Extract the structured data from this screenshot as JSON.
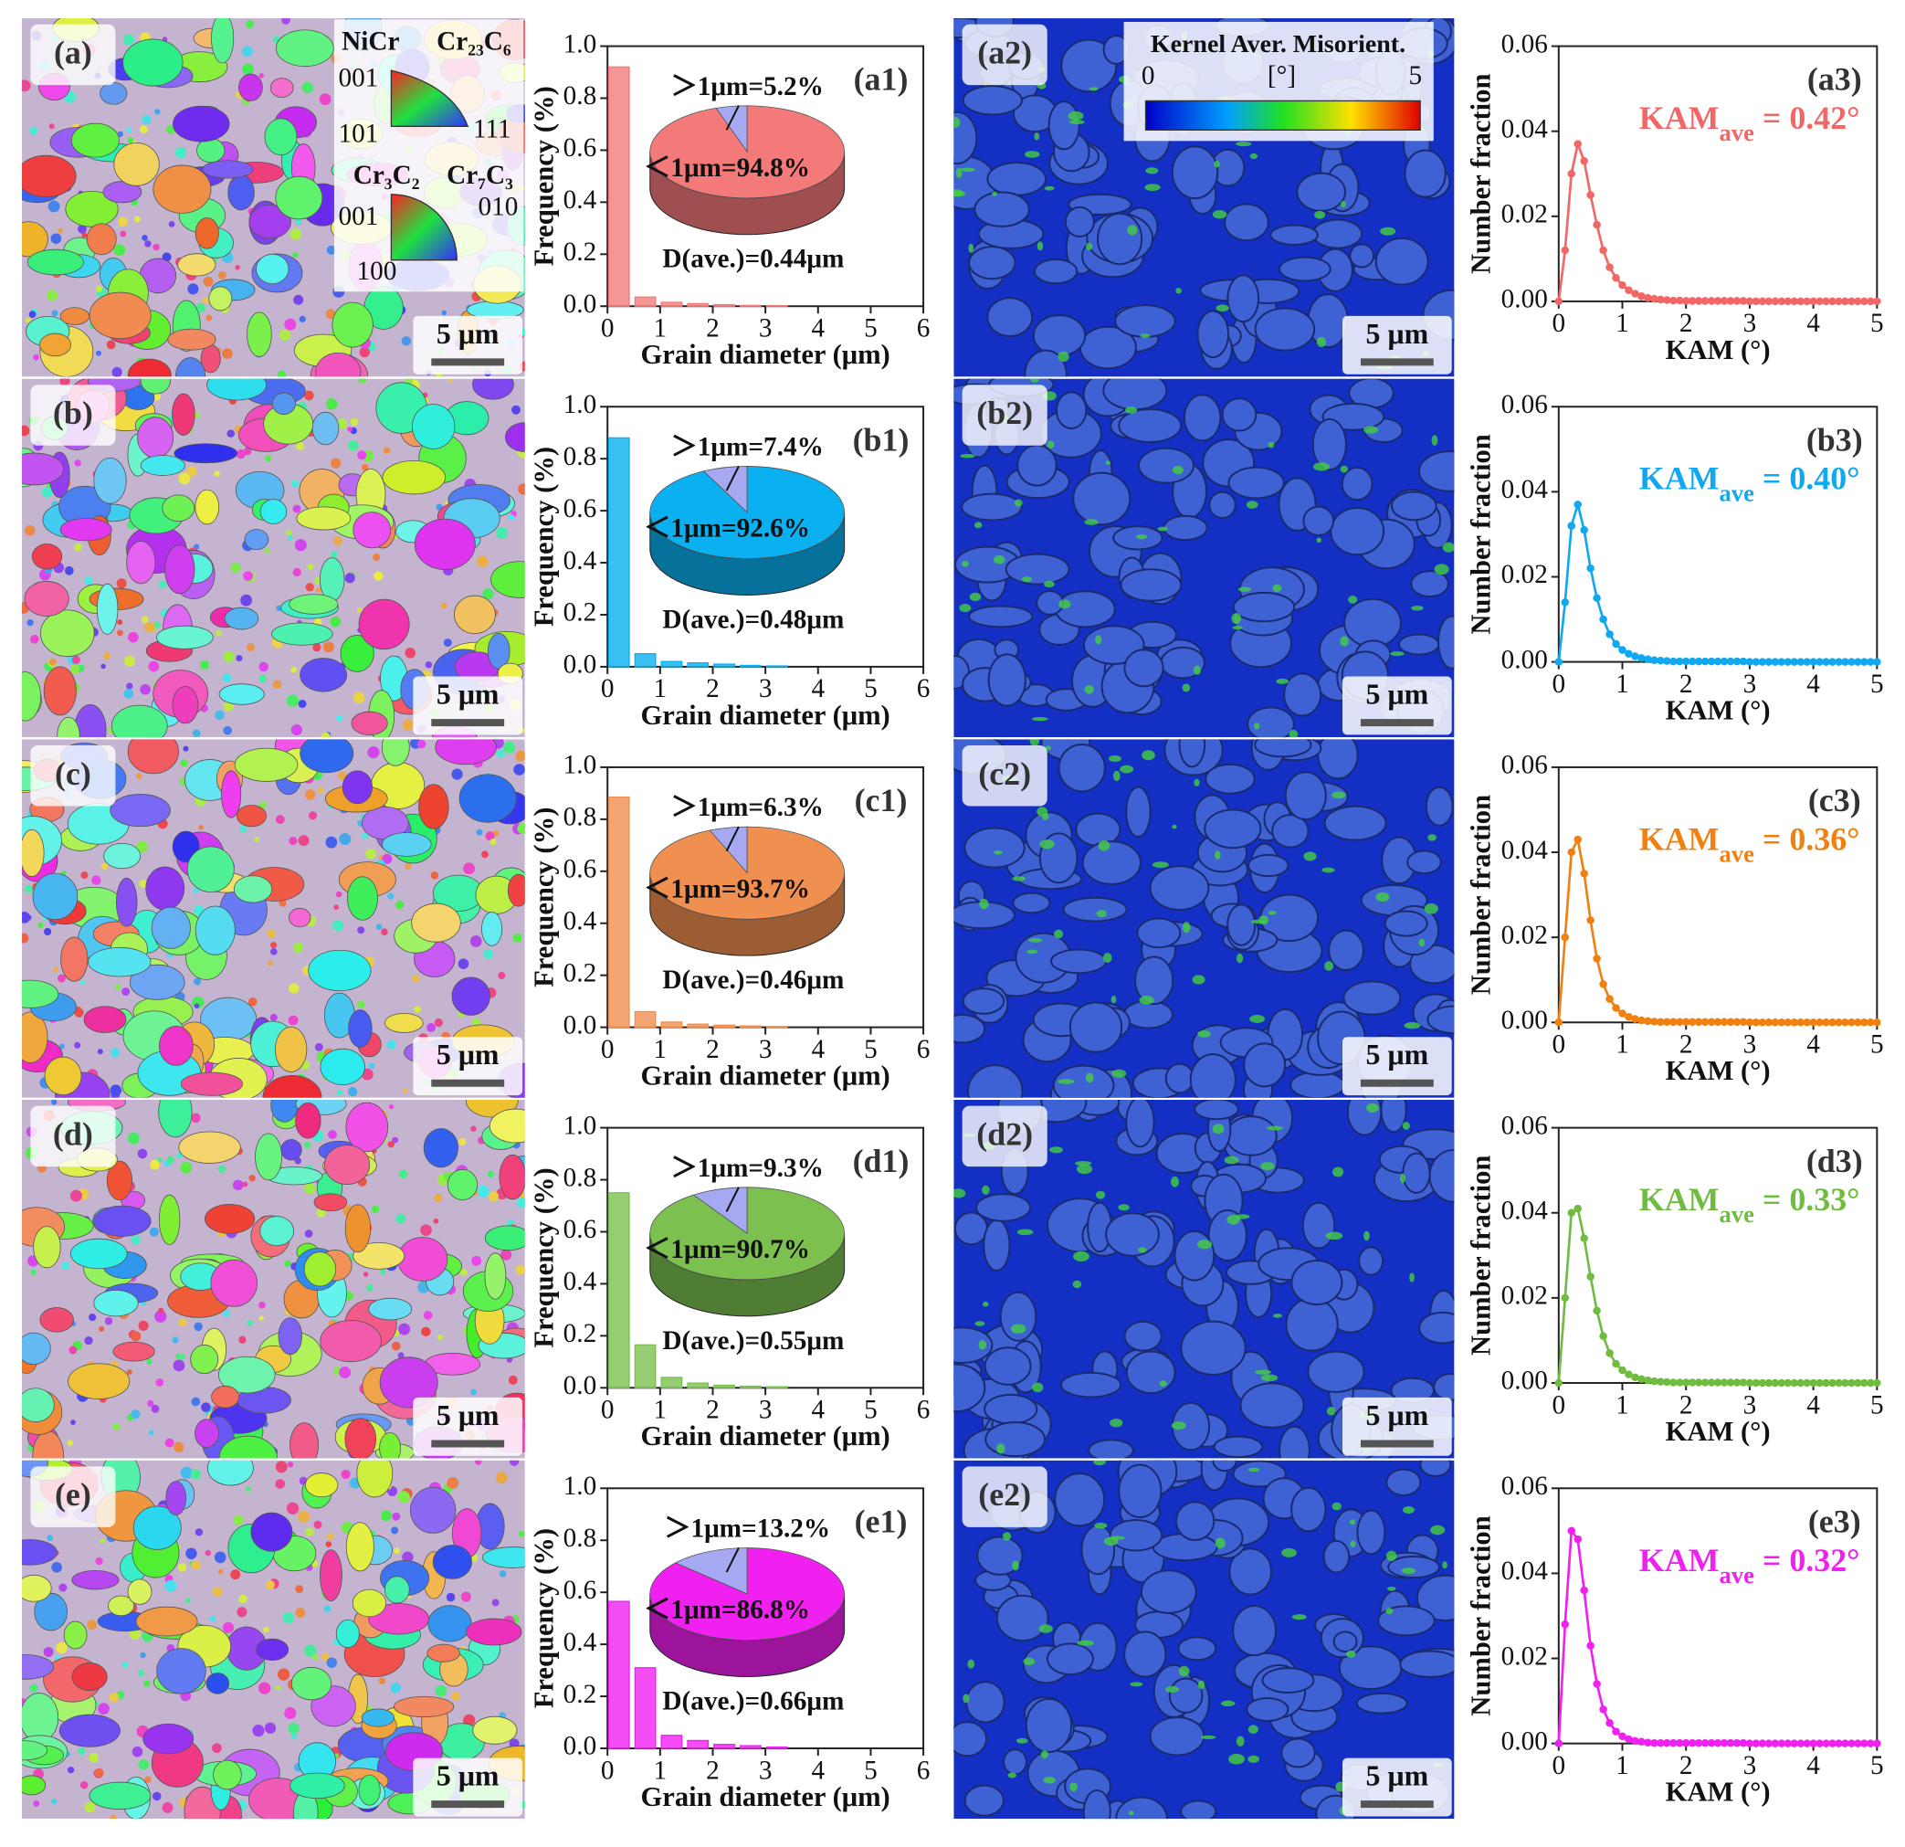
{
  "ipf_legend": {
    "phase_a": "NiCr",
    "phase_b": "Cr₂₃C₆",
    "corners_a": [
      "001",
      "101",
      "111"
    ],
    "phase_c": "Cr₃C₂",
    "phase_d": "Cr₇C₃",
    "corners_b": [
      "001",
      "010",
      "100"
    ]
  },
  "kam_legend": {
    "title": "Kernel Aver. Misorient.",
    "min": "0",
    "unit": "[°]",
    "max": "5"
  },
  "micrographs": [
    {
      "label": "(a)",
      "scale": "5 μm"
    },
    {
      "label": "(b)",
      "scale": "5 μm"
    },
    {
      "label": "(c)",
      "scale": "5 μm"
    },
    {
      "label": "(d)",
      "scale": "5 μm"
    },
    {
      "label": "(e)",
      "scale": "5 μm"
    }
  ],
  "kam_maps": [
    {
      "label": "(a2)",
      "scale": "5 μm"
    },
    {
      "label": "(b2)",
      "scale": "5 μm"
    },
    {
      "label": "(c2)",
      "scale": "5 μm"
    },
    {
      "label": "(d2)",
      "scale": "5 μm"
    },
    {
      "label": "(e2)",
      "scale": "5 μm"
    }
  ],
  "chart_data": [
    {
      "type": "histogram",
      "label": "(a1)",
      "xlabel": "Grain diameter (μm)",
      "ylabel": "Frequency (%)",
      "color": "#f47a7a",
      "bins": [
        0,
        0.5,
        1,
        1.5,
        2,
        2.5,
        3,
        3.5
      ],
      "values": [
        0.92,
        0.035,
        0.015,
        0.01,
        0.006,
        0.003,
        0.002
      ],
      "xlim": [
        0,
        6
      ],
      "ylim": [
        0,
        1
      ],
      "xticks": [
        0,
        1,
        2,
        3,
        4,
        5,
        6
      ],
      "yticks": [
        {
          "value": 0,
          "label": "0.0"
        },
        0.2,
        0.4,
        0.6,
        0.8,
        {
          "value": 1,
          "label": "1.0"
        }
      ],
      "annotation": "D(ave.)=0.44μm",
      "inset": {
        "type": "pie",
        "labels": [
          "＞1μm=5.2%",
          "＜1μm=94.8%"
        ],
        "values": [
          5.2,
          94.8
        ],
        "colors": [
          "#a6a9f2",
          "#f47a7a"
        ]
      }
    },
    {
      "type": "line",
      "label": "(a3)",
      "xlabel": "KAM (°)",
      "ylabel": "Number fraction",
      "color": "#f26666",
      "annotation": {
        "main": "KAM",
        "sub": "ave",
        "rest": " = 0.42°"
      },
      "xlim": [
        0,
        5
      ],
      "ylim": [
        0,
        0.06
      ],
      "xticks": [
        0,
        1,
        2,
        3,
        4,
        5
      ],
      "yticks": [
        {
          "value": 0,
          "label": "0.00"
        },
        {
          "value": 0.02,
          "label": "0.02"
        },
        {
          "value": 0.04,
          "label": "0.04"
        },
        {
          "value": 0.06,
          "label": "0.06"
        }
      ],
      "x": [
        0,
        0.1,
        0.2,
        0.3,
        0.4,
        0.5,
        0.6,
        0.7,
        0.8,
        0.9,
        1,
        1.1,
        1.2,
        1.3,
        1.4,
        1.5,
        1.6,
        1.7,
        1.8,
        1.9,
        2,
        2.1,
        2.2,
        2.3,
        2.4,
        2.5,
        2.6,
        2.7,
        2.8,
        2.9,
        3,
        3.1,
        3.2,
        3.3,
        3.4,
        3.5,
        3.6,
        3.7,
        3.8,
        3.9,
        4,
        4.1,
        4.2,
        4.3,
        4.4,
        4.5,
        4.6,
        4.7,
        4.8,
        4.9,
        5
      ],
      "values": [
        0,
        0.012,
        0.03,
        0.037,
        0.033,
        0.025,
        0.018,
        0.012,
        0.008,
        0.0055,
        0.0038,
        0.0026,
        0.0018,
        0.0012,
        0.0008,
        0.0006,
        0.0004,
        0.0003,
        0.0002,
        0.0002,
        0.0001,
        0.0001,
        0.0001,
        0.0001,
        0.0001,
        0.0001,
        0.0001,
        0.0001,
        0.0001,
        0.0001,
        0,
        0,
        0,
        0,
        0,
        0,
        0,
        0,
        0,
        0,
        0,
        0,
        0,
        0,
        0,
        0,
        0,
        0,
        0,
        0,
        0
      ]
    },
    {
      "type": "histogram",
      "label": "(b1)",
      "xlabel": "Grain diameter (μm)",
      "ylabel": "Frequency (%)",
      "color": "#0ab0f0",
      "bins": [
        0,
        0.5,
        1,
        1.5,
        2,
        2.5,
        3,
        3.5
      ],
      "values": [
        0.88,
        0.05,
        0.02,
        0.015,
        0.01,
        0.005,
        0.003
      ],
      "xlim": [
        0,
        6
      ],
      "ylim": [
        0,
        1
      ],
      "xticks": [
        0,
        1,
        2,
        3,
        4,
        5,
        6
      ],
      "yticks": [
        {
          "value": 0,
          "label": "0.0"
        },
        0.2,
        0.4,
        0.6,
        0.8,
        {
          "value": 1,
          "label": "1.0"
        }
      ],
      "annotation": "D(ave.)=0.48μm",
      "inset": {
        "type": "pie",
        "labels": [
          "＞1μm=7.4%",
          "＜1μm=92.6%"
        ],
        "values": [
          7.4,
          92.6
        ],
        "colors": [
          "#a6a9f2",
          "#0ab0f0"
        ]
      }
    },
    {
      "type": "line",
      "label": "(b3)",
      "xlabel": "KAM (°)",
      "ylabel": "Number fraction",
      "color": "#10a8f0",
      "annotation": {
        "main": "KAM",
        "sub": "ave",
        "rest": " = 0.40°"
      },
      "xlim": [
        0,
        5
      ],
      "ylim": [
        0,
        0.06
      ],
      "xticks": [
        0,
        1,
        2,
        3,
        4,
        5
      ],
      "yticks": [
        {
          "value": 0,
          "label": "0.00"
        },
        {
          "value": 0.02,
          "label": "0.02"
        },
        {
          "value": 0.04,
          "label": "0.04"
        },
        {
          "value": 0.06,
          "label": "0.06"
        }
      ],
      "x": [
        0,
        0.1,
        0.2,
        0.3,
        0.4,
        0.5,
        0.6,
        0.7,
        0.8,
        0.9,
        1,
        1.1,
        1.2,
        1.3,
        1.4,
        1.5,
        1.6,
        1.7,
        1.8,
        1.9,
        2,
        2.1,
        2.2,
        2.3,
        2.4,
        2.5,
        2.6,
        2.7,
        2.8,
        2.9,
        3,
        3.1,
        3.2,
        3.3,
        3.4,
        3.5,
        3.6,
        3.7,
        3.8,
        3.9,
        4,
        4.1,
        4.2,
        4.3,
        4.4,
        4.5,
        4.6,
        4.7,
        4.8,
        4.9,
        5
      ],
      "values": [
        0,
        0.014,
        0.032,
        0.037,
        0.031,
        0.022,
        0.015,
        0.01,
        0.0065,
        0.0042,
        0.0028,
        0.0019,
        0.0013,
        0.0009,
        0.0006,
        0.0004,
        0.0003,
        0.0002,
        0.0001,
        0.0001,
        0.0001,
        0.0001,
        0.0001,
        0.0001,
        0.0001,
        0.0001,
        0.0001,
        0.0001,
        0.0001,
        0.0001,
        0,
        0,
        0,
        0,
        0,
        0,
        0,
        0,
        0,
        0,
        0,
        0,
        0,
        0,
        0,
        0,
        0,
        0,
        0,
        0,
        0
      ]
    },
    {
      "type": "histogram",
      "label": "(c1)",
      "xlabel": "Grain diameter (μm)",
      "ylabel": "Frequency (%)",
      "color": "#f09050",
      "bins": [
        0,
        0.5,
        1,
        1.5,
        2,
        2.5,
        3,
        3.5
      ],
      "values": [
        0.885,
        0.06,
        0.02,
        0.012,
        0.008,
        0.005,
        0.003
      ],
      "xlim": [
        0,
        6
      ],
      "ylim": [
        0,
        1
      ],
      "xticks": [
        0,
        1,
        2,
        3,
        4,
        5,
        6
      ],
      "yticks": [
        {
          "value": 0,
          "label": "0.0"
        },
        0.2,
        0.4,
        0.6,
        0.8,
        {
          "value": 1,
          "label": "1.0"
        }
      ],
      "annotation": "D(ave.)=0.46μm",
      "inset": {
        "type": "pie",
        "labels": [
          "＞1μm=6.3%",
          "＜1μm=93.7%"
        ],
        "values": [
          6.3,
          93.7
        ],
        "colors": [
          "#a6a9f2",
          "#f09050"
        ]
      }
    },
    {
      "type": "line",
      "label": "(c3)",
      "xlabel": "KAM (°)",
      "ylabel": "Number fraction",
      "color": "#f08010",
      "annotation": {
        "main": "KAM",
        "sub": "ave",
        "rest": " = 0.36°"
      },
      "xlim": [
        0,
        5
      ],
      "ylim": [
        0,
        0.06
      ],
      "xticks": [
        0,
        1,
        2,
        3,
        4,
        5
      ],
      "yticks": [
        {
          "value": 0,
          "label": "0.00"
        },
        {
          "value": 0.02,
          "label": "0.02"
        },
        {
          "value": 0.04,
          "label": "0.04"
        },
        {
          "value": 0.06,
          "label": "0.06"
        }
      ],
      "x": [
        0,
        0.1,
        0.2,
        0.3,
        0.4,
        0.5,
        0.6,
        0.7,
        0.8,
        0.9,
        1,
        1.1,
        1.2,
        1.3,
        1.4,
        1.5,
        1.6,
        1.7,
        1.8,
        1.9,
        2,
        2.1,
        2.2,
        2.3,
        2.4,
        2.5,
        2.6,
        2.7,
        2.8,
        2.9,
        3,
        3.1,
        3.2,
        3.3,
        3.4,
        3.5,
        3.6,
        3.7,
        3.8,
        3.9,
        4,
        4.1,
        4.2,
        4.3,
        4.4,
        4.5,
        4.6,
        4.7,
        4.8,
        4.9,
        5
      ],
      "values": [
        0,
        0.02,
        0.04,
        0.043,
        0.035,
        0.024,
        0.015,
        0.009,
        0.0055,
        0.0034,
        0.0021,
        0.0013,
        0.0008,
        0.0005,
        0.0003,
        0.0002,
        0.0001,
        0.0001,
        0.0001,
        0.0001,
        0.0001,
        0.0001,
        0.0001,
        0.0001,
        0.0001,
        0.0001,
        0.0001,
        0.0001,
        0.0001,
        0.0001,
        0,
        0,
        0,
        0,
        0,
        0,
        0,
        0,
        0,
        0,
        0,
        0,
        0,
        0,
        0,
        0,
        0,
        0,
        0,
        0,
        0
      ]
    },
    {
      "type": "histogram",
      "label": "(d1)",
      "xlabel": "Grain diameter (μm)",
      "ylabel": "Frequency (%)",
      "color": "#7cc050",
      "bins": [
        0,
        0.5,
        1,
        1.5,
        2,
        2.5,
        3,
        3.5
      ],
      "values": [
        0.75,
        0.165,
        0.04,
        0.018,
        0.01,
        0.006,
        0.004
      ],
      "xlim": [
        0,
        6
      ],
      "ylim": [
        0,
        1
      ],
      "xticks": [
        0,
        1,
        2,
        3,
        4,
        5,
        6
      ],
      "yticks": [
        {
          "value": 0,
          "label": "0.0"
        },
        0.2,
        0.4,
        0.6,
        0.8,
        {
          "value": 1,
          "label": "1.0"
        }
      ],
      "annotation": "D(ave.)=0.55μm",
      "inset": {
        "type": "pie",
        "labels": [
          "＞1μm=9.3%",
          "＜1μm=90.7%"
        ],
        "values": [
          9.3,
          90.7
        ],
        "colors": [
          "#a6a9f2",
          "#7cc050"
        ]
      }
    },
    {
      "type": "line",
      "label": "(d3)",
      "xlabel": "KAM (°)",
      "ylabel": "Number fraction",
      "color": "#70bc40",
      "annotation": {
        "main": "KAM",
        "sub": "ave",
        "rest": " = 0.33°"
      },
      "xlim": [
        0,
        5
      ],
      "ylim": [
        0,
        0.06
      ],
      "xticks": [
        0,
        1,
        2,
        3,
        4,
        5
      ],
      "yticks": [
        {
          "value": 0,
          "label": "0.00"
        },
        {
          "value": 0.02,
          "label": "0.02"
        },
        {
          "value": 0.04,
          "label": "0.04"
        },
        {
          "value": 0.06,
          "label": "0.06"
        }
      ],
      "x": [
        0,
        0.1,
        0.2,
        0.3,
        0.4,
        0.5,
        0.6,
        0.7,
        0.8,
        0.9,
        1,
        1.1,
        1.2,
        1.3,
        1.4,
        1.5,
        1.6,
        1.7,
        1.8,
        1.9,
        2,
        2.1,
        2.2,
        2.3,
        2.4,
        2.5,
        2.6,
        2.7,
        2.8,
        2.9,
        3,
        3.1,
        3.2,
        3.3,
        3.4,
        3.5,
        3.6,
        3.7,
        3.8,
        3.9,
        4,
        4.1,
        4.2,
        4.3,
        4.4,
        4.5,
        4.6,
        4.7,
        4.8,
        4.9,
        5
      ],
      "values": [
        0,
        0.02,
        0.04,
        0.041,
        0.034,
        0.025,
        0.017,
        0.011,
        0.007,
        0.0045,
        0.003,
        0.002,
        0.0013,
        0.0009,
        0.0006,
        0.0004,
        0.0003,
        0.0002,
        0.0001,
        0.0001,
        0.0001,
        0.0001,
        0.0001,
        0.0001,
        0.0001,
        0.0001,
        0.0001,
        0.0001,
        0.0001,
        0.0001,
        0,
        0,
        0,
        0,
        0,
        0,
        0,
        0,
        0,
        0,
        0,
        0,
        0,
        0,
        0,
        0,
        0,
        0,
        0,
        0,
        0
      ]
    },
    {
      "type": "histogram",
      "label": "(e1)",
      "xlabel": "Grain diameter (μm)",
      "ylabel": "Frequency (%)",
      "color": "#f020f0",
      "bins": [
        0,
        0.5,
        1,
        1.5,
        2,
        2.5,
        3,
        3.5
      ],
      "values": [
        0.565,
        0.31,
        0.05,
        0.03,
        0.015,
        0.01,
        0.005
      ],
      "xlim": [
        0,
        6
      ],
      "ylim": [
        0,
        1
      ],
      "xticks": [
        0,
        1,
        2,
        3,
        4,
        5,
        6
      ],
      "yticks": [
        {
          "value": 0,
          "label": "0.0"
        },
        0.2,
        0.4,
        0.6,
        0.8,
        {
          "value": 1,
          "label": "1.0"
        }
      ],
      "annotation": "D(ave.)=0.66μm",
      "inset": {
        "type": "pie",
        "labels": [
          "＞1μm=13.2%",
          "＜1μm=86.8%"
        ],
        "values": [
          13.2,
          86.8
        ],
        "colors": [
          "#a6a9f2",
          "#f020f0"
        ]
      }
    },
    {
      "type": "line",
      "label": "(e3)",
      "xlabel": "KAM (°)",
      "ylabel": "Number fraction",
      "color": "#f020f0",
      "annotation": {
        "main": "KAM",
        "sub": "ave",
        "rest": " = 0.32°"
      },
      "xlim": [
        0,
        5
      ],
      "ylim": [
        0,
        0.06
      ],
      "xticks": [
        0,
        1,
        2,
        3,
        4,
        5
      ],
      "yticks": [
        {
          "value": 0,
          "label": "0.00"
        },
        {
          "value": 0.02,
          "label": "0.02"
        },
        {
          "value": 0.04,
          "label": "0.04"
        },
        {
          "value": 0.06,
          "label": "0.06"
        }
      ],
      "x": [
        0,
        0.1,
        0.2,
        0.3,
        0.4,
        0.5,
        0.6,
        0.7,
        0.8,
        0.9,
        1,
        1.1,
        1.2,
        1.3,
        1.4,
        1.5,
        1.6,
        1.7,
        1.8,
        1.9,
        2,
        2.1,
        2.2,
        2.3,
        2.4,
        2.5,
        2.6,
        2.7,
        2.8,
        2.9,
        3,
        3.1,
        3.2,
        3.3,
        3.4,
        3.5,
        3.6,
        3.7,
        3.8,
        3.9,
        4,
        4.1,
        4.2,
        4.3,
        4.4,
        4.5,
        4.6,
        4.7,
        4.8,
        4.9,
        5
      ],
      "values": [
        0,
        0.028,
        0.05,
        0.048,
        0.036,
        0.023,
        0.014,
        0.008,
        0.0048,
        0.0028,
        0.0017,
        0.001,
        0.0006,
        0.0004,
        0.0002,
        0.0001,
        0.0001,
        0.0001,
        0.0001,
        0.0001,
        0.0001,
        0.0001,
        0.0001,
        0.0001,
        0.0001,
        0.0001,
        0.0001,
        0.0001,
        0.0001,
        0.0001,
        0,
        0,
        0,
        0,
        0,
        0,
        0,
        0,
        0,
        0,
        0,
        0,
        0,
        0,
        0,
        0,
        0,
        0,
        0,
        0,
        0
      ]
    }
  ]
}
